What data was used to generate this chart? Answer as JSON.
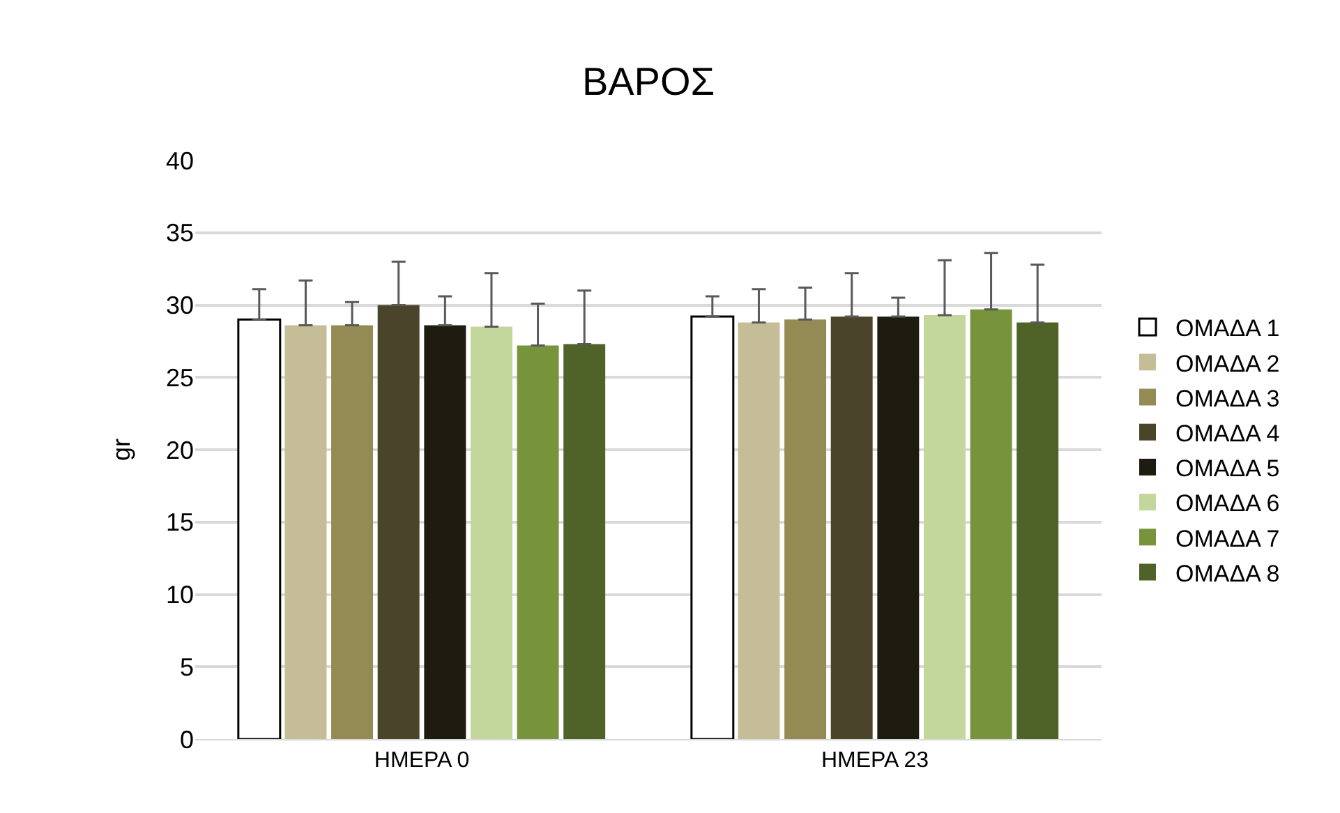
{
  "chart_data": {
    "type": "bar",
    "title": "ΒΑΡΟΣ",
    "ylabel": "gr",
    "categories": [
      "ΗΜΕΡΑ 0",
      "ΗΜΕΡΑ 23"
    ],
    "series": [
      {
        "name": "ΟΜΑΔΑ 1",
        "color": "#ffffff",
        "values": [
          29.0,
          29.2
        ],
        "errors": [
          [
            29.0,
            31.1
          ],
          [
            29.2,
            30.6
          ]
        ]
      },
      {
        "name": "ΟΜΑΔΑ 2",
        "color": "#c4bd97",
        "values": [
          28.6,
          28.8
        ],
        "errors": [
          [
            28.6,
            31.7
          ],
          [
            28.8,
            31.1
          ]
        ]
      },
      {
        "name": "ΟΜΑΔΑ 3",
        "color": "#948a54",
        "values": [
          28.6,
          29.0
        ],
        "errors": [
          [
            28.6,
            30.2
          ],
          [
            29.0,
            31.2
          ]
        ]
      },
      {
        "name": "ΟΜΑΔΑ 4",
        "color": "#4a452a",
        "values": [
          30.0,
          29.2
        ],
        "errors": [
          [
            30.0,
            33.0
          ],
          [
            29.2,
            32.2
          ]
        ]
      },
      {
        "name": "ΟΜΑΔΑ 5",
        "color": "#1e1c11",
        "values": [
          28.6,
          29.2
        ],
        "errors": [
          [
            28.6,
            30.6
          ],
          [
            29.2,
            30.5
          ]
        ]
      },
      {
        "name": "ΟΜΑΔΑ 6",
        "color": "#c3d69b",
        "values": [
          28.5,
          29.3
        ],
        "errors": [
          [
            28.5,
            32.2
          ],
          [
            29.3,
            33.1
          ]
        ]
      },
      {
        "name": "ΟΜΑΔΑ 7",
        "color": "#77933c",
        "values": [
          27.2,
          29.7
        ],
        "errors": [
          [
            27.2,
            30.1
          ],
          [
            29.7,
            33.6
          ]
        ]
      },
      {
        "name": "ΟΜΑΔΑ 8",
        "color": "#4f6228",
        "values": [
          27.3,
          28.8
        ],
        "errors": [
          [
            27.3,
            31.0
          ],
          [
            28.8,
            32.8
          ]
        ]
      }
    ],
    "ylim": [
      0,
      40
    ],
    "yticks": [
      0,
      5,
      10,
      15,
      20,
      25,
      30,
      35,
      40
    ],
    "grid": "y",
    "legend": "right"
  }
}
